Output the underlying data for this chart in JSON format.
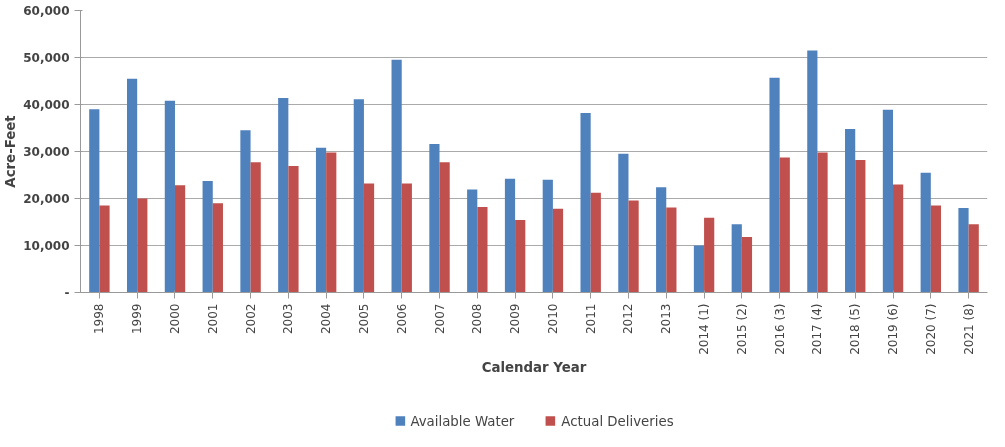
{
  "chart_data": {
    "type": "bar",
    "xlabel": "Calendar Year",
    "ylabel": "Acre-Feet",
    "categories": [
      "1998",
      "1999",
      "2000",
      "2001",
      "2002",
      "2003",
      "2004",
      "2005",
      "2006",
      "2007",
      "2008",
      "2009",
      "2010",
      "2011",
      "2012",
      "2013",
      "2014 (1)",
      "2015 (2)",
      "2016 (3)",
      "2017 (4)",
      "2018 (5)",
      "2019 (6)",
      "2020 (7)",
      "2021 (8)"
    ],
    "series": [
      {
        "name": "Available Water",
        "color": "#4f81bd",
        "values": [
          39000,
          45500,
          40800,
          23700,
          34500,
          41400,
          30800,
          41100,
          49500,
          31600,
          21900,
          24200,
          24000,
          38200,
          29500,
          22400,
          10000,
          14500,
          45700,
          51500,
          34800,
          38900,
          25500,
          18000
        ]
      },
      {
        "name": "Actual Deliveries",
        "color": "#c0504d",
        "values": [
          18500,
          20000,
          22800,
          19000,
          27700,
          26900,
          29800,
          23200,
          23200,
          27700,
          18200,
          15400,
          17800,
          21200,
          19600,
          18100,
          15900,
          11800,
          28700,
          29800,
          28200,
          23000,
          18500,
          14500
        ]
      }
    ],
    "ylim": [
      0,
      60000
    ],
    "yticks": [
      {
        "value": 0,
        "label": "-"
      },
      {
        "value": 10000,
        "label": "10,000"
      },
      {
        "value": 20000,
        "label": "20,000"
      },
      {
        "value": 30000,
        "label": "30,000"
      },
      {
        "value": 40000,
        "label": "40,000"
      },
      {
        "value": 50000,
        "label": "50,000"
      },
      {
        "value": 60000,
        "label": "60,000"
      }
    ],
    "grid": "y",
    "legend": "bottom"
  }
}
